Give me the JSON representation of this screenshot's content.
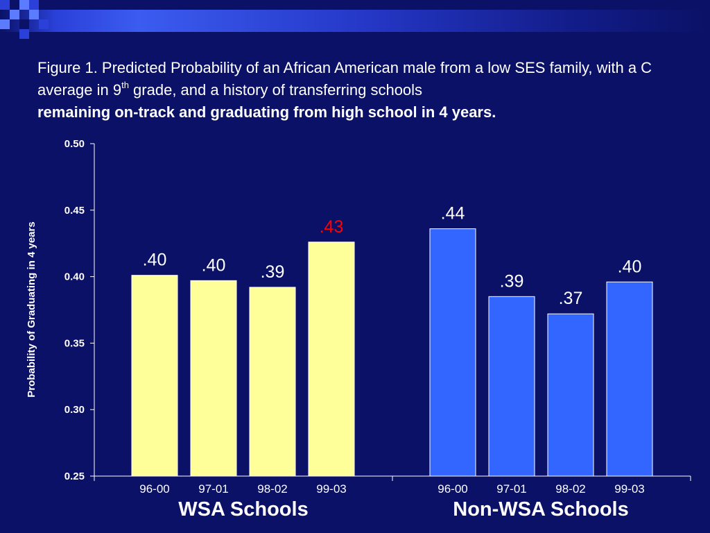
{
  "title": {
    "part1": "Figure 1. Predicted Probability of an African American male from a low SES family, with a C average in 9",
    "sup": "th",
    "part2": " grade, and a history of transferring schools",
    "bold": "remaining on-track and graduating from high school in 4 years."
  },
  "colors": {
    "background": "#0a1166",
    "wsa_bar": "#ffff99",
    "non_wsa_bar": "#3366ff",
    "highlight_label": "#ff0000",
    "text": "#ffffff"
  },
  "chart_data": {
    "type": "bar",
    "ylabel": "Probability of Graduating in 4 years",
    "ylim": [
      0.25,
      0.5
    ],
    "yticks": [
      "0.50",
      "0.45",
      "0.40",
      "0.35",
      "0.30",
      "0.25"
    ],
    "ytick_values": [
      0.5,
      0.45,
      0.4,
      0.35,
      0.3,
      0.25
    ],
    "grid": false,
    "groups": [
      {
        "name": "WSA Schools",
        "color": "#ffff99",
        "categories": [
          "96-00",
          "97-01",
          "98-02",
          "99-03"
        ],
        "values": [
          0.401,
          0.397,
          0.392,
          0.426
        ],
        "labels": [
          ".40",
          ".40",
          ".39",
          ".43"
        ],
        "label_colors": [
          "#ffffff",
          "#ffffff",
          "#ffffff",
          "#ff0000"
        ]
      },
      {
        "name": "Non-WSA Schools",
        "color": "#3366ff",
        "categories": [
          "96-00",
          "97-01",
          "98-02",
          "99-03"
        ],
        "values": [
          0.436,
          0.385,
          0.372,
          0.396
        ],
        "labels": [
          ".44",
          ".39",
          ".37",
          ".40"
        ],
        "label_colors": [
          "#ffffff",
          "#ffffff",
          "#ffffff",
          "#ffffff"
        ]
      }
    ]
  }
}
